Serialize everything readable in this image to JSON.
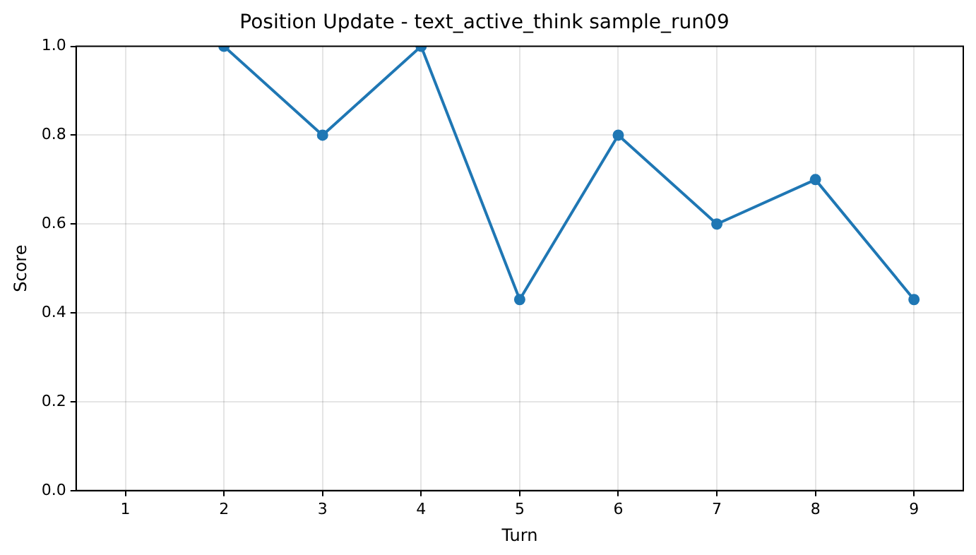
{
  "chart_data": {
    "type": "line",
    "title": "Position Update - text_active_think sample_run09",
    "xlabel": "Turn",
    "ylabel": "Score",
    "x": [
      2,
      3,
      4,
      5,
      6,
      7,
      8,
      9
    ],
    "series": [
      {
        "color": "#1f77b4",
        "values": [
          1.0,
          0.8,
          1.0,
          0.43,
          0.8,
          0.6,
          0.7,
          0.43
        ]
      }
    ],
    "xlim": [
      0.5,
      9.5
    ],
    "xticks": [
      1,
      2,
      3,
      4,
      5,
      6,
      7,
      8,
      9
    ],
    "ylim": [
      0,
      1
    ],
    "yticks": [
      {
        "value": 0,
        "label": "0.0"
      },
      {
        "value": 0.2,
        "label": "0.2"
      },
      {
        "value": 0.4,
        "label": "0.4"
      },
      {
        "value": 0.6,
        "label": "0.6"
      },
      {
        "value": 0.8,
        "label": "0.8"
      },
      {
        "value": 1,
        "label": "1.0"
      }
    ],
    "grid": true,
    "marker": "circle",
    "line_style": "solid"
  }
}
